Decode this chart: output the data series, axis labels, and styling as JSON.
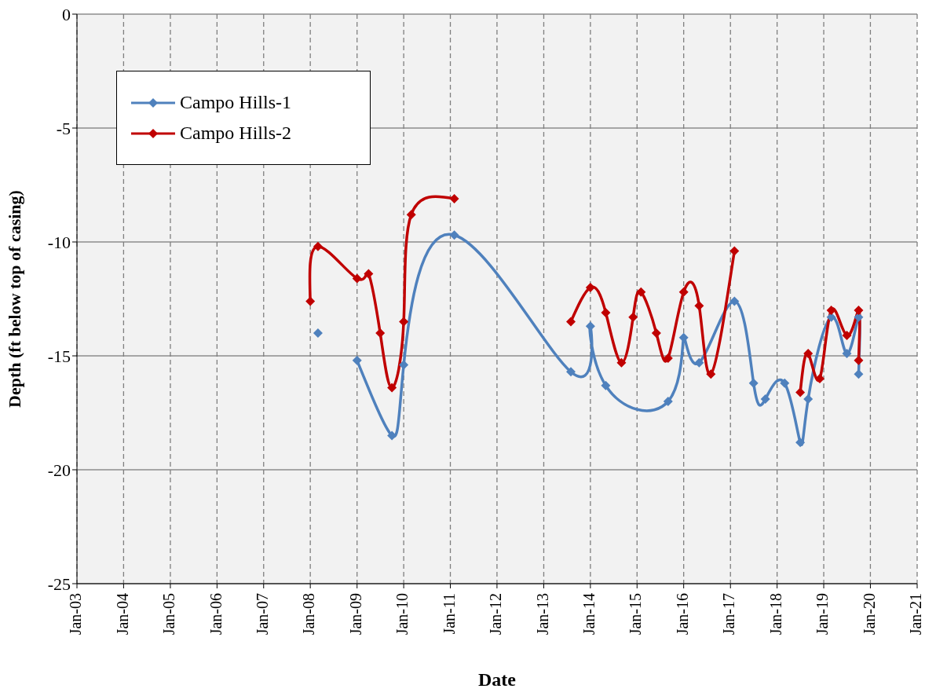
{
  "chart_data": {
    "type": "line",
    "xlabel": "Date",
    "ylabel": "Depth (ft below top of casing)",
    "xlim": [
      "2003-01",
      "2021-01"
    ],
    "xticks": [
      {
        "value": "2003-01",
        "label": "Jan-03"
      },
      {
        "value": "2004-01",
        "label": "Jan-04"
      },
      {
        "value": "2005-01",
        "label": "Jan-05"
      },
      {
        "value": "2006-01",
        "label": "Jan-06"
      },
      {
        "value": "2007-01",
        "label": "Jan-07"
      },
      {
        "value": "2008-01",
        "label": "Jan-08"
      },
      {
        "value": "2009-01",
        "label": "Jan-09"
      },
      {
        "value": "2010-01",
        "label": "Jan-10"
      },
      {
        "value": "2011-01",
        "label": "Jan-11"
      },
      {
        "value": "2012-01",
        "label": "Jan-12"
      },
      {
        "value": "2013-01",
        "label": "Jan-13"
      },
      {
        "value": "2014-01",
        "label": "Jan-14"
      },
      {
        "value": "2015-01",
        "label": "Jan-15"
      },
      {
        "value": "2016-01",
        "label": "Jan-16"
      },
      {
        "value": "2017-01",
        "label": "Jan-17"
      },
      {
        "value": "2018-01",
        "label": "Jan-18"
      },
      {
        "value": "2019-01",
        "label": "Jan-19"
      },
      {
        "value": "2020-01",
        "label": "Jan-20"
      },
      {
        "value": "2021-01",
        "label": "Jan-21"
      }
    ],
    "ylim": [
      -25,
      0
    ],
    "yticks": [
      -25,
      -20,
      -15,
      -10,
      -5,
      0
    ],
    "grid": true,
    "legend": "top left",
    "marker": "diamond",
    "line_style": "solid",
    "series": [
      {
        "name": "Campo Hills-1",
        "color": "#4f81bd",
        "x": [
          "2008-03",
          "2008-08",
          "2009-01",
          "2009-10",
          "2010-01",
          "2011-02",
          "2013-08",
          "2014-01",
          "2014-05",
          "2015-09",
          "2016-01",
          "2016-05",
          "2017-02",
          "2017-07",
          "2017-10",
          "2018-03",
          "2018-07",
          "2018-09",
          "2019-03",
          "2019-07",
          "2019-10",
          "2019-10"
        ],
        "values": [
          -14.0,
          null,
          -15.2,
          -18.5,
          -15.4,
          -9.7,
          -15.7,
          -13.7,
          -16.3,
          -17.0,
          -14.2,
          -15.3,
          -12.6,
          -16.2,
          -16.9,
          -16.2,
          -18.8,
          -16.9,
          -13.3,
          -14.9,
          -13.3,
          -15.8
        ]
      },
      {
        "name": "Campo Hills-2",
        "color": "#c00000",
        "x": [
          "2008-01",
          "2008-03",
          "2009-01",
          "2009-04",
          "2009-07",
          "2009-10",
          "2010-01",
          "2010-03",
          "2011-02",
          "2012-06",
          "2013-08",
          "2014-01",
          "2014-05",
          "2014-09",
          "2014-12",
          "2015-02",
          "2015-06",
          "2015-09",
          "2016-01",
          "2016-05",
          "2016-08",
          "2017-02",
          "2017-10",
          "2018-07",
          "2018-09",
          "2018-12",
          "2019-03",
          "2019-07",
          "2019-10",
          "2019-10"
        ],
        "values": [
          -12.6,
          -10.2,
          -11.6,
          -11.4,
          -14.0,
          -16.4,
          -13.5,
          -8.8,
          -8.1,
          null,
          -13.5,
          -12.0,
          -13.1,
          -15.3,
          -13.3,
          -12.2,
          -14.0,
          -15.1,
          -12.2,
          -12.8,
          -15.8,
          -10.4,
          null,
          -16.6,
          -14.9,
          -16.0,
          -13.0,
          -14.1,
          -13.0,
          -15.2
        ]
      }
    ]
  }
}
